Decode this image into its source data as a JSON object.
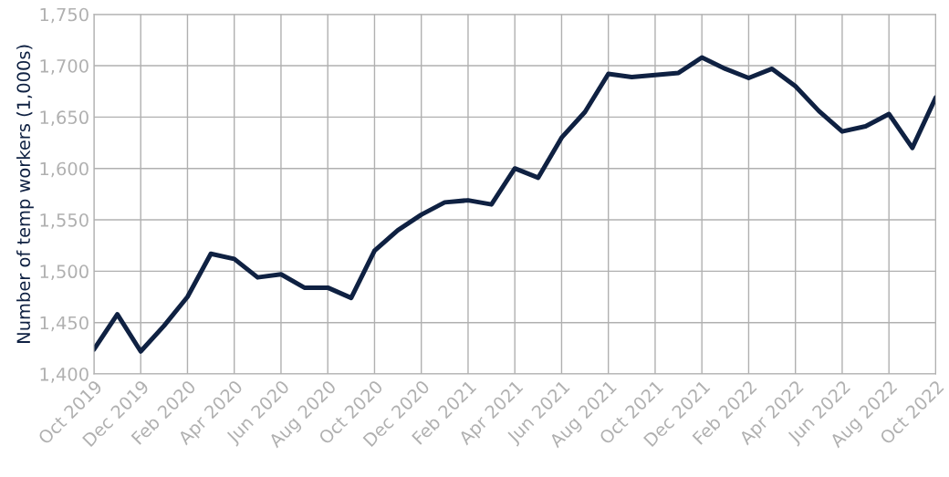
{
  "chart_data": {
    "type": "line",
    "ylabel": "Number of temp workers (1,000s)",
    "categories": [
      "Oct 2019",
      null,
      "Dec 2019",
      null,
      "Feb 2020",
      null,
      "Apr 2020",
      null,
      "Jun 2020",
      null,
      "Aug 2020",
      null,
      "Oct 2020",
      null,
      "Dec 2020",
      null,
      "Feb 2021",
      null,
      "Apr 2021",
      null,
      "Jun 2021",
      null,
      "Aug 2021",
      null,
      "Oct 2021",
      null,
      "Dec 2021",
      null,
      "Feb 2022",
      null,
      "Apr 2022",
      null,
      "Jun 2022",
      null,
      "Aug 2022",
      null,
      "Oct 2022"
    ],
    "series": [
      {
        "color": "#0f2142",
        "values": [
          1424,
          1458,
          1422,
          1447,
          1475,
          1517,
          1512,
          1494,
          1497,
          1484,
          1484,
          1474,
          1520,
          1540,
          1555,
          1567,
          1569,
          1565,
          1600,
          1591,
          1630,
          1655,
          1692,
          1689,
          1691,
          1693,
          1708,
          1697,
          1688,
          1697,
          1680,
          1656,
          1636,
          1641,
          1653,
          1620,
          1669
        ]
      }
    ],
    "ylim": [
      1400,
      1750
    ],
    "yticks": [
      {
        "value": 1400,
        "label": "1,400"
      },
      {
        "value": 1450,
        "label": "1,450"
      },
      {
        "value": 1500,
        "label": "1,500"
      },
      {
        "value": 1550,
        "label": "1,550"
      },
      {
        "value": 1600,
        "label": "1,600"
      },
      {
        "value": 1650,
        "label": "1,650"
      },
      {
        "value": 1700,
        "label": "1,700"
      },
      {
        "value": 1750,
        "label": "1,750"
      }
    ],
    "grid": true,
    "legend": false,
    "marker": "none",
    "line_style": "solid"
  }
}
